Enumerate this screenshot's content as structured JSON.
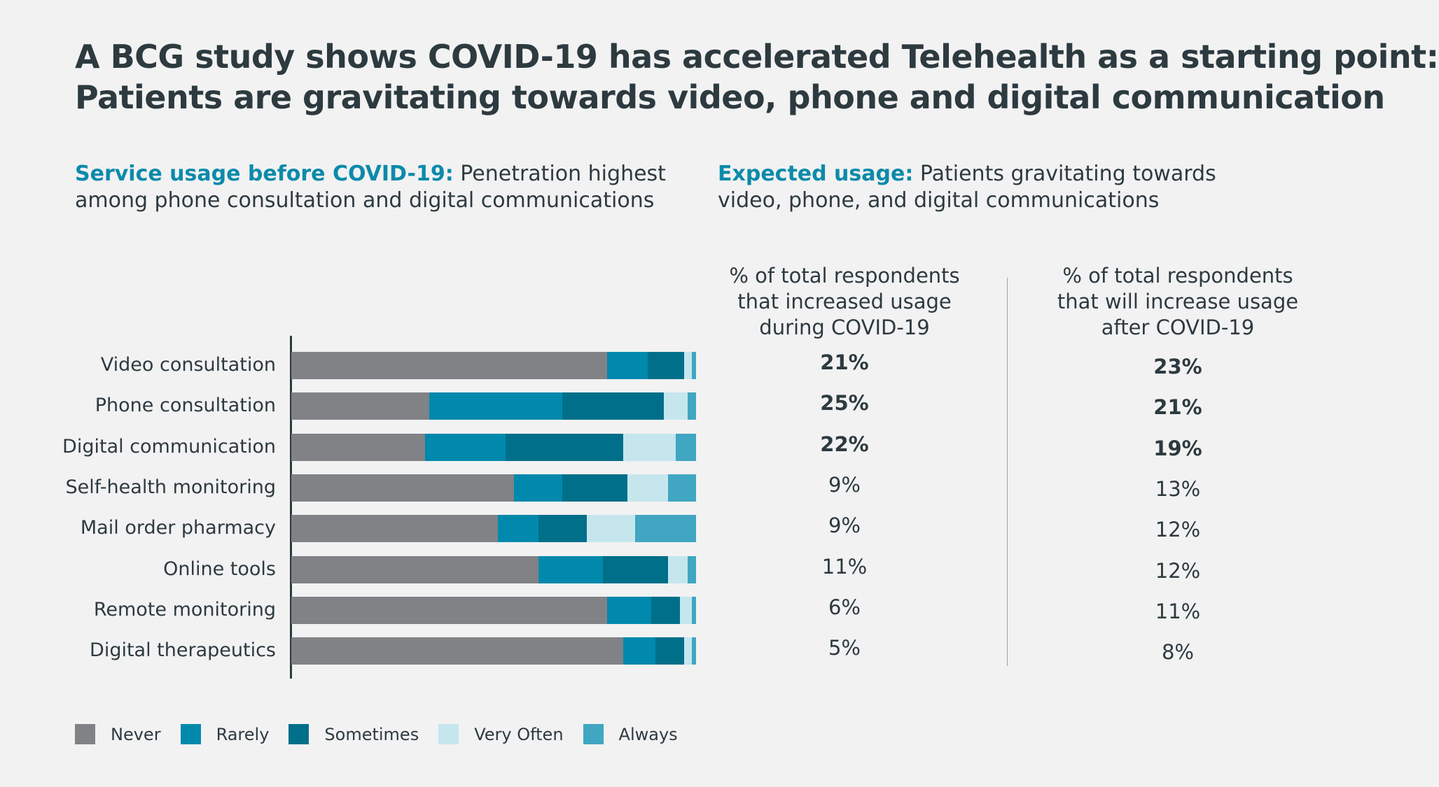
{
  "title_line1": "A BCG study shows COVID-19 has accelerated Telehealth as a starting point:",
  "title_line2": "Patients are gravitating towards video, phone and digital communication",
  "left_subhead": {
    "accent": "Service usage before COVID-19:",
    "line1_rest": " Penetration highest",
    "line2": "among phone consultation and digital communications"
  },
  "right_subhead": {
    "accent": "Expected usage:",
    "line1_rest": " Patients gravitating towards",
    "line2": "video, phone, and digital communications"
  },
  "col_during": {
    "line1": "% of total respondents",
    "line2": "that increased usage",
    "line3": "during COVID-19"
  },
  "col_after": {
    "line1": "% of total respondents",
    "line2": "that will increase usage",
    "line3": "after COVID-19"
  },
  "chart_data": {
    "type": "bar",
    "orientation": "horizontal",
    "stacked": true,
    "unit": "share of respondents (%)",
    "categories": [
      "Video consultation",
      "Phone consultation",
      "Digital communication",
      "Self-health monitoring",
      "Mail order pharmacy",
      "Online tools",
      "Remote monitoring",
      "Digital therapeutics"
    ],
    "series": [
      {
        "name": "Never",
        "color": "#808285",
        "values": [
          78,
          34,
          33,
          55,
          51,
          61,
          78,
          82
        ]
      },
      {
        "name": "Rarely",
        "color": "#0189ad",
        "values": [
          10,
          33,
          20,
          12,
          10,
          16,
          11,
          8
        ]
      },
      {
        "name": "Sometimes",
        "color": "#006f8a",
        "values": [
          9,
          25,
          29,
          16,
          12,
          16,
          7,
          7
        ]
      },
      {
        "name": "Very Often",
        "color": "#c6e6ee",
        "values": [
          2,
          6,
          13,
          10,
          12,
          5,
          3,
          2
        ]
      },
      {
        "name": "Always",
        "color": "#40a6c2",
        "values": [
          1,
          2,
          5,
          7,
          15,
          2,
          1,
          1
        ]
      }
    ],
    "xlim": [
      0,
      100
    ],
    "legend_position": "bottom-left",
    "increased_during_covid": {
      "values": [
        "21%",
        "25%",
        "22%",
        "9%",
        "9%",
        "11%",
        "6%",
        "5%"
      ],
      "bold": [
        true,
        true,
        true,
        false,
        false,
        false,
        false,
        false
      ]
    },
    "increase_after_covid": {
      "values": [
        "23%",
        "21%",
        "19%",
        "13%",
        "12%",
        "12%",
        "11%",
        "8%"
      ],
      "bold": [
        true,
        true,
        true,
        false,
        false,
        false,
        false,
        false
      ]
    }
  }
}
